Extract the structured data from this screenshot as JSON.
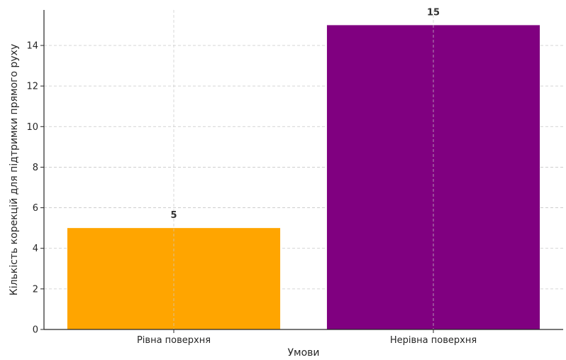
{
  "chart_data": {
    "type": "bar",
    "title": "",
    "categories": [
      "Рівна поверхня",
      "Нерівна поверхня"
    ],
    "values": [
      5,
      15
    ],
    "colors": [
      "#FFA500",
      "#800080"
    ],
    "data_labels": [
      "5",
      "15"
    ],
    "xlabel": "Умови",
    "ylabel": "Кількість корекцій для підтримки прямого руху",
    "ylim": [
      0,
      15.75
    ],
    "yticks": [
      0,
      2,
      4,
      6,
      8,
      10,
      12,
      14
    ],
    "grid": true,
    "axis_color": "#262626",
    "grid_color": "#c8c8c8"
  }
}
